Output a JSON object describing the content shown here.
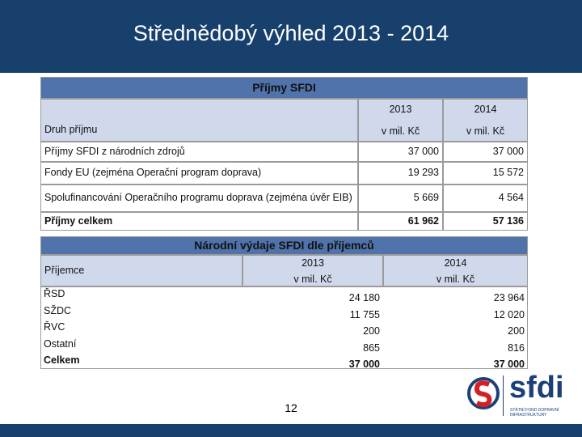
{
  "header": {
    "title": "Střednědobý výhled 2013 - 2014"
  },
  "table1": {
    "title": "Příjmy SFDI",
    "years": [
      "2013",
      "2014"
    ],
    "row_header": "Druh příjmu",
    "units": [
      "v mil. Kč",
      "v mil. Kč"
    ],
    "rows": [
      [
        "Příjmy SFDI z národních zdrojů",
        "37 000",
        "37 000"
      ],
      [
        "Fondy EU (zejména Operační program doprava)",
        "19 293",
        "15 572"
      ],
      [
        "Spolufinancování Operačního programu doprava (zejména úvěr EIB)",
        "5 669",
        "4 564"
      ],
      [
        "Příjmy celkem",
        "61 962",
        "57 136"
      ]
    ]
  },
  "table2": {
    "title": "Národní výdaje SFDI dle příjemců",
    "years": [
      "2013",
      "2014"
    ],
    "row_header": "Příjemce",
    "units": [
      "v mil. Kč",
      "v mil. Kč"
    ],
    "rows": [
      [
        "ŘSD",
        "24 180",
        "23 964"
      ],
      [
        "SŽDC",
        "11 755",
        "12 020"
      ],
      [
        "ŘVC",
        "200",
        "200"
      ],
      [
        "Ostatní",
        "865",
        "816"
      ],
      [
        "Celkem",
        "37 000",
        "37 000"
      ]
    ]
  },
  "footer": {
    "page_number": "12",
    "logo": "sfdi",
    "logo_subtitle": "STÁTNÍ FOND DOPRAVNÍ INFRASTRUKTURY"
  }
}
